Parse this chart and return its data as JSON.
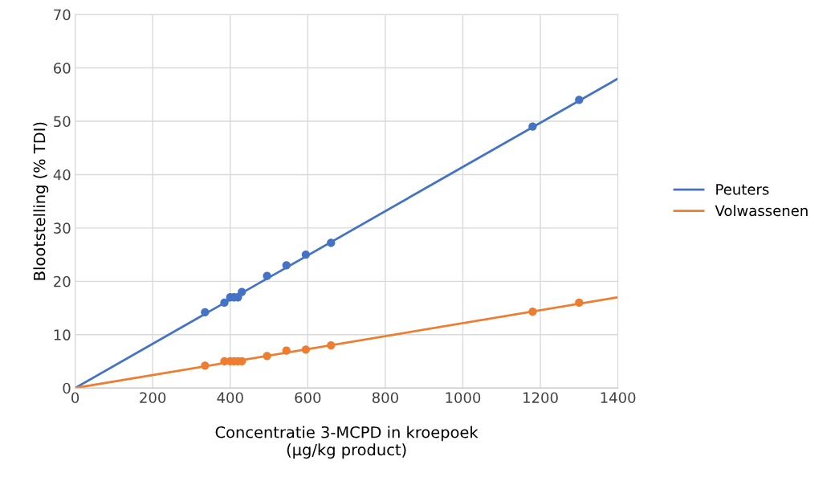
{
  "chart_data": {
    "type": "line",
    "xlabel": "Concentratie 3-MCPD in kroepoek\n(µg/kg product)",
    "ylabel": "Blootstelling (% TDI)",
    "xlim": [
      0,
      1400
    ],
    "xticks": [
      0,
      200,
      400,
      600,
      800,
      1000,
      1200,
      1400
    ],
    "ylim": [
      0,
      70
    ],
    "yticks": [
      0,
      10,
      20,
      30,
      40,
      50,
      60,
      70
    ],
    "grid": true,
    "legend": "right",
    "series": [
      {
        "name": "Peuters",
        "color": "#4472c4",
        "marker": "none",
        "x": [
          0,
          1400
        ],
        "values": [
          0,
          58
        ]
      },
      {
        "name": "Volwassenen",
        "color": "#ed7d31",
        "marker": "none",
        "x": [
          0,
          1400
        ],
        "values": [
          0,
          17
        ]
      },
      {
        "type": "scatter",
        "color": "#4472c4",
        "marker": "circle",
        "x": [
          335,
          385,
          400,
          410,
          420,
          430,
          495,
          545,
          595,
          660,
          1180,
          1300
        ],
        "values": [
          14.2,
          16,
          17,
          17,
          17,
          18,
          21,
          23,
          25,
          27.2,
          49,
          54
        ]
      },
      {
        "type": "scatter",
        "color": "#ed7d31",
        "marker": "circle",
        "x": [
          335,
          385,
          400,
          410,
          420,
          430,
          495,
          545,
          595,
          660,
          1180,
          1300
        ],
        "values": [
          4.2,
          5,
          5,
          5,
          5,
          5,
          6,
          7,
          7.2,
          8,
          14.3,
          16
        ]
      }
    ]
  }
}
